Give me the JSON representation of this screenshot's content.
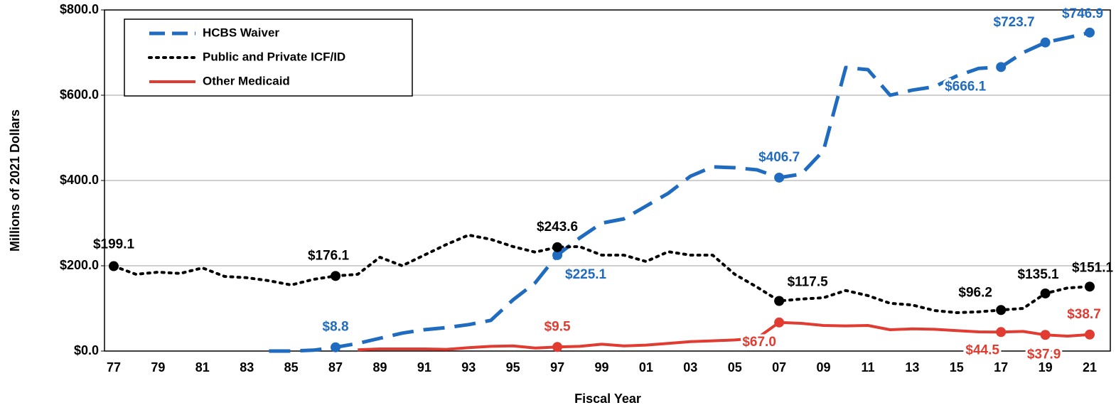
{
  "chart_data": {
    "type": "line",
    "x_label": "Fiscal Year",
    "y_label": "Millions of 2021 Dollars",
    "categories": [
      "77",
      null,
      "79",
      null,
      "81",
      null,
      "83",
      null,
      "85",
      null,
      "87",
      null,
      "89",
      null,
      "91",
      null,
      "93",
      null,
      "95",
      null,
      "97",
      null,
      "99",
      null,
      "01",
      null,
      "03",
      null,
      "05",
      null,
      "07",
      null,
      "09",
      null,
      "11",
      null,
      "13",
      null,
      "15",
      null,
      "17",
      null,
      "19",
      null,
      "21"
    ],
    "ylim": [
      0,
      800
    ],
    "yticks": [
      {
        "value": 0,
        "label": "$0.0"
      },
      {
        "value": 200,
        "label": "$200.0"
      },
      {
        "value": 400,
        "label": "$400.0"
      },
      {
        "value": 600,
        "label": "$600.0"
      },
      {
        "value": 800,
        "label": "$800.0"
      }
    ],
    "grid": true,
    "legend": "upper left",
    "series": [
      {
        "name": "HCBS Waiver",
        "color": "#1f6bc0",
        "style": "dashed",
        "values": [
          null,
          null,
          null,
          null,
          null,
          null,
          null,
          0,
          0,
          2,
          8.8,
          18,
          30,
          42,
          50,
          55,
          62,
          72,
          120,
          160,
          225.1,
          265,
          300,
          310,
          340,
          370,
          410,
          432,
          430,
          425,
          406.7,
          415,
          470,
          665,
          660,
          600,
          612,
          620,
          645,
          663,
          666.1,
          700,
          723.7,
          735,
          746.9
        ],
        "value_labels": [
          null,
          null,
          null,
          null,
          null,
          null,
          null,
          null,
          null,
          null,
          "$8.8",
          null,
          null,
          null,
          null,
          null,
          null,
          null,
          null,
          null,
          "$225.1",
          null,
          null,
          null,
          null,
          null,
          null,
          null,
          null,
          null,
          "$406.7",
          null,
          null,
          null,
          null,
          null,
          null,
          null,
          null,
          null,
          "$666.1",
          null,
          "$723.7",
          null,
          "$746.9"
        ]
      },
      {
        "name": "Public and Private ICF/ID",
        "color": "#000000",
        "style": "dotted",
        "values": [
          199.1,
          180,
          185,
          182,
          195,
          175,
          172,
          165,
          155,
          168,
          176.1,
          180,
          220,
          200,
          225,
          250,
          272,
          262,
          245,
          232,
          243.6,
          245,
          225,
          225,
          210,
          233,
          225,
          225,
          180,
          150,
          117.5,
          122,
          125,
          142,
          130,
          112,
          108,
          95,
          90,
          92,
          96.2,
          100,
          135.1,
          148,
          151.1
        ],
        "value_labels": [
          "$199.1",
          null,
          null,
          null,
          null,
          null,
          null,
          null,
          null,
          null,
          "$176.1",
          null,
          null,
          null,
          null,
          null,
          null,
          null,
          null,
          null,
          "$243.6",
          null,
          null,
          null,
          null,
          null,
          null,
          null,
          null,
          null,
          "$117.5",
          null,
          null,
          null,
          null,
          null,
          null,
          null,
          null,
          null,
          "$96.2",
          null,
          "$135.1",
          null,
          "$151.1"
        ]
      },
      {
        "name": "Other Medicaid",
        "color": "#e03c31",
        "style": "solid",
        "values": [
          null,
          null,
          null,
          null,
          null,
          null,
          null,
          null,
          null,
          null,
          null,
          3,
          5,
          5,
          5,
          4,
          8,
          11,
          12,
          7,
          9.5,
          11,
          16,
          12,
          14,
          18,
          22,
          24,
          26,
          30,
          67.0,
          65,
          60,
          59,
          60,
          50,
          52,
          51,
          48,
          45,
          44.5,
          46,
          37.9,
          35,
          38.7
        ],
        "value_labels": [
          null,
          null,
          null,
          null,
          null,
          null,
          null,
          null,
          null,
          null,
          null,
          null,
          null,
          null,
          null,
          null,
          null,
          null,
          null,
          null,
          "$9.5",
          null,
          null,
          null,
          null,
          null,
          null,
          null,
          null,
          null,
          "$67.0",
          null,
          null,
          null,
          null,
          null,
          null,
          null,
          null,
          null,
          "$44.5",
          null,
          "$37.9",
          null,
          "$38.7"
        ]
      }
    ]
  }
}
